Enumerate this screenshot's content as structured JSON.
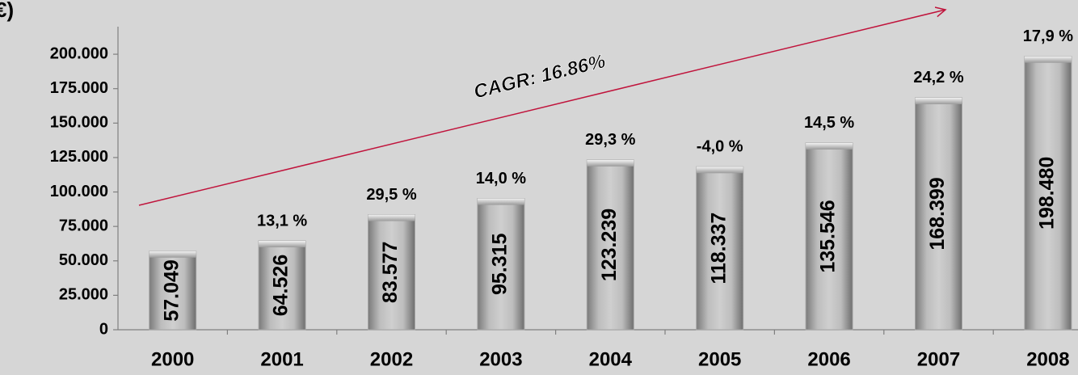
{
  "chart_data": {
    "type": "bar",
    "ylabel": "€)",
    "annotation": "CAGR: 16.86%",
    "categories": [
      "2000",
      "2001",
      "2002",
      "2003",
      "2004",
      "2005",
      "2006",
      "2007",
      "2008"
    ],
    "values": [
      57049,
      64526,
      83577,
      95315,
      123239,
      118337,
      135546,
      168399,
      198480
    ],
    "value_labels": [
      "57.049",
      "64.526",
      "83.577",
      "95.315",
      "123.239",
      "118.337",
      "135.546",
      "168.399",
      "198.480"
    ],
    "growth_labels": [
      null,
      "13,1 %",
      "29,5 %",
      "14,0 %",
      "29,3 %",
      "-4,0 %",
      "14,5 %",
      "24,2 %",
      "17,9 %"
    ],
    "color": "#a6a6a6",
    "annotation_color": "#c0143c",
    "ylim": [
      0,
      220000
    ],
    "yticks": [
      0,
      {
        "value": 25000,
        "label": "25.000"
      },
      {
        "value": 50000,
        "label": "50.000"
      },
      {
        "value": 75000,
        "label": "75.000"
      },
      {
        "value": 100000,
        "label": "100.000"
      },
      {
        "value": 125000,
        "label": "125.000"
      },
      {
        "value": 150000,
        "label": "150.000"
      },
      {
        "value": 175000,
        "label": "175.000"
      },
      {
        "value": 200000,
        "label": "200.000"
      }
    ],
    "grid": false
  }
}
